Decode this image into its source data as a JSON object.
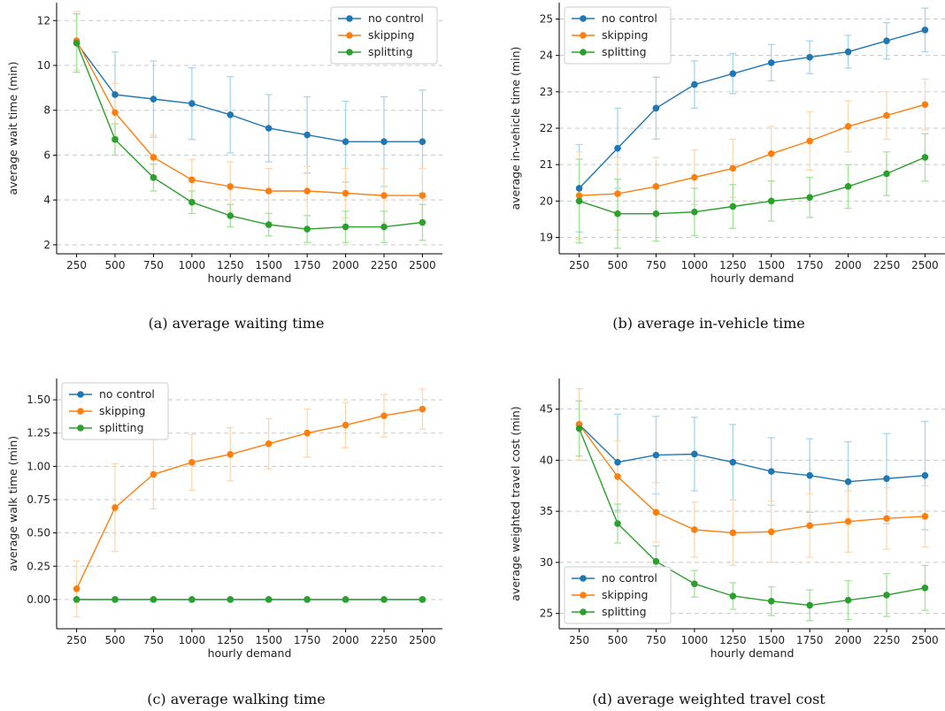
{
  "colors": {
    "no control": "#1f77b4",
    "skipping": "#ff7f0e",
    "splitting": "#2ca02c",
    "err_no control": "#a6d6e8",
    "err_skipping": "#fbd8b0",
    "err_splitting": "#a3e39a",
    "grid": "#c8c8c8",
    "axis": "#000000"
  },
  "chart_data": [
    {
      "type": "line",
      "caption": "(a) average waiting time",
      "xlabel": "hourly demand",
      "ylabel": "average wait time (min)",
      "x": [
        250,
        500,
        750,
        1000,
        1250,
        1500,
        1750,
        2000,
        2250,
        2500
      ],
      "xlim": [
        120,
        2630
      ],
      "ylim": [
        1.6,
        12.8
      ],
      "yticks": [
        2,
        4,
        6,
        8,
        10,
        12
      ],
      "ytick_labels": [
        "2",
        "4",
        "6",
        "8",
        "10",
        "12"
      ],
      "grid": "horizontal dashed",
      "legend": "top-right",
      "series": [
        {
          "name": "no control",
          "values": [
            11.0,
            8.7,
            8.5,
            8.3,
            7.8,
            7.2,
            6.9,
            6.6,
            6.6,
            6.6
          ],
          "err": [
            1.3,
            1.9,
            1.7,
            1.6,
            1.7,
            1.5,
            1.7,
            1.8,
            2.0,
            2.3
          ]
        },
        {
          "name": "skipping",
          "values": [
            11.1,
            7.9,
            5.9,
            4.9,
            4.6,
            4.4,
            4.4,
            4.3,
            4.2,
            4.2
          ],
          "err": [
            1.3,
            1.3,
            1.0,
            0.9,
            1.1,
            1.0,
            1.1,
            1.1,
            1.2,
            1.2
          ]
        },
        {
          "name": "splitting",
          "values": [
            11.0,
            6.7,
            5.0,
            3.9,
            3.3,
            2.9,
            2.7,
            2.8,
            2.8,
            3.0
          ],
          "err": [
            1.3,
            0.7,
            0.6,
            0.5,
            0.5,
            0.5,
            0.6,
            0.7,
            0.7,
            0.8
          ]
        }
      ]
    },
    {
      "type": "line",
      "caption": "(b) average in-vehicle time",
      "xlabel": "hourly demand",
      "ylabel": "average in-vehicle time (min)",
      "x": [
        250,
        500,
        750,
        1000,
        1250,
        1500,
        1750,
        2000,
        2250,
        2500
      ],
      "xlim": [
        120,
        2630
      ],
      "ylim": [
        18.55,
        25.45
      ],
      "yticks": [
        19,
        20,
        21,
        22,
        23,
        24,
        25
      ],
      "ytick_labels": [
        "19",
        "20",
        "21",
        "22",
        "23",
        "24",
        "25"
      ],
      "grid": "horizontal dashed",
      "legend": "top-left",
      "series": [
        {
          "name": "no control",
          "values": [
            20.35,
            21.45,
            22.55,
            23.2,
            23.5,
            23.8,
            23.95,
            24.1,
            24.4,
            24.7
          ],
          "err": [
            1.2,
            1.1,
            0.85,
            0.65,
            0.55,
            0.5,
            0.45,
            0.45,
            0.5,
            0.6
          ]
        },
        {
          "name": "skipping",
          "values": [
            20.15,
            20.2,
            20.4,
            20.65,
            20.9,
            21.3,
            21.65,
            22.05,
            22.35,
            22.65
          ],
          "err": [
            1.2,
            1.0,
            0.8,
            0.75,
            0.8,
            0.75,
            0.8,
            0.7,
            0.65,
            0.7
          ]
        },
        {
          "name": "splitting",
          "values": [
            20.0,
            19.65,
            19.65,
            19.7,
            19.85,
            20.0,
            20.1,
            20.4,
            20.75,
            21.2
          ],
          "err": [
            1.15,
            0.95,
            0.75,
            0.65,
            0.6,
            0.55,
            0.55,
            0.6,
            0.6,
            0.65
          ]
        }
      ]
    },
    {
      "type": "line",
      "caption": "(c) average walking time",
      "xlabel": "hourly demand",
      "ylabel": "average walk time (min)",
      "x": [
        250,
        500,
        750,
        1000,
        1250,
        1500,
        1750,
        2000,
        2250,
        2500
      ],
      "xlim": [
        120,
        2630
      ],
      "ylim": [
        -0.22,
        1.66
      ],
      "yticks": [
        0,
        0.25,
        0.5,
        0.75,
        1.0,
        1.25,
        1.5
      ],
      "ytick_labels": [
        "0.00",
        "0.25",
        "0.50",
        "0.75",
        "1.00",
        "1.25",
        "1.50"
      ],
      "grid": "horizontal dashed",
      "legend": "top-left",
      "series": [
        {
          "name": "no control",
          "values": [
            0,
            0,
            0,
            0,
            0,
            0,
            0,
            0,
            0,
            0
          ],
          "err": [
            0,
            0,
            0,
            0,
            0,
            0,
            0,
            0,
            0,
            0
          ]
        },
        {
          "name": "skipping",
          "values": [
            0.08,
            0.69,
            0.94,
            1.03,
            1.09,
            1.17,
            1.25,
            1.31,
            1.38,
            1.43
          ],
          "err": [
            0.21,
            0.33,
            0.26,
            0.21,
            0.2,
            0.19,
            0.18,
            0.17,
            0.16,
            0.15
          ]
        },
        {
          "name": "splitting",
          "values": [
            0,
            0,
            0,
            0,
            0,
            0,
            0,
            0,
            0,
            0
          ],
          "err": [
            0,
            0,
            0,
            0,
            0,
            0,
            0,
            0,
            0,
            0
          ]
        }
      ]
    },
    {
      "type": "line",
      "caption": "(d) average weighted travel cost",
      "xlabel": "hourly demand",
      "ylabel": "average weighted travel cost (min)",
      "x": [
        250,
        500,
        750,
        1000,
        1250,
        1500,
        1750,
        2000,
        2250,
        2500
      ],
      "xlim": [
        120,
        2630
      ],
      "ylim": [
        23.5,
        48.0
      ],
      "yticks": [
        25,
        30,
        35,
        40,
        45
      ],
      "ytick_labels": [
        "25",
        "30",
        "35",
        "40",
        "45"
      ],
      "grid": "horizontal dashed",
      "legend": "bottom-left",
      "series": [
        {
          "name": "no control",
          "values": [
            43.5,
            39.8,
            40.5,
            40.6,
            39.8,
            38.9,
            38.5,
            37.9,
            38.2,
            38.5
          ],
          "err": [
            3.5,
            4.7,
            3.8,
            3.6,
            3.7,
            3.3,
            3.6,
            3.9,
            4.4,
            5.3
          ]
        },
        {
          "name": "skipping",
          "values": [
            43.5,
            38.4,
            34.9,
            33.2,
            32.9,
            33.0,
            33.6,
            34.0,
            34.3,
            34.5
          ],
          "err": [
            3.5,
            3.5,
            2.9,
            2.7,
            3.2,
            3.0,
            3.1,
            3.0,
            3.0,
            3.0
          ]
        },
        {
          "name": "splitting",
          "values": [
            43.1,
            33.8,
            30.1,
            27.9,
            26.7,
            26.2,
            25.8,
            26.3,
            26.8,
            27.5
          ],
          "err": [
            2.7,
            1.9,
            1.5,
            1.3,
            1.3,
            1.4,
            1.5,
            1.9,
            2.1,
            2.2
          ]
        }
      ]
    }
  ]
}
